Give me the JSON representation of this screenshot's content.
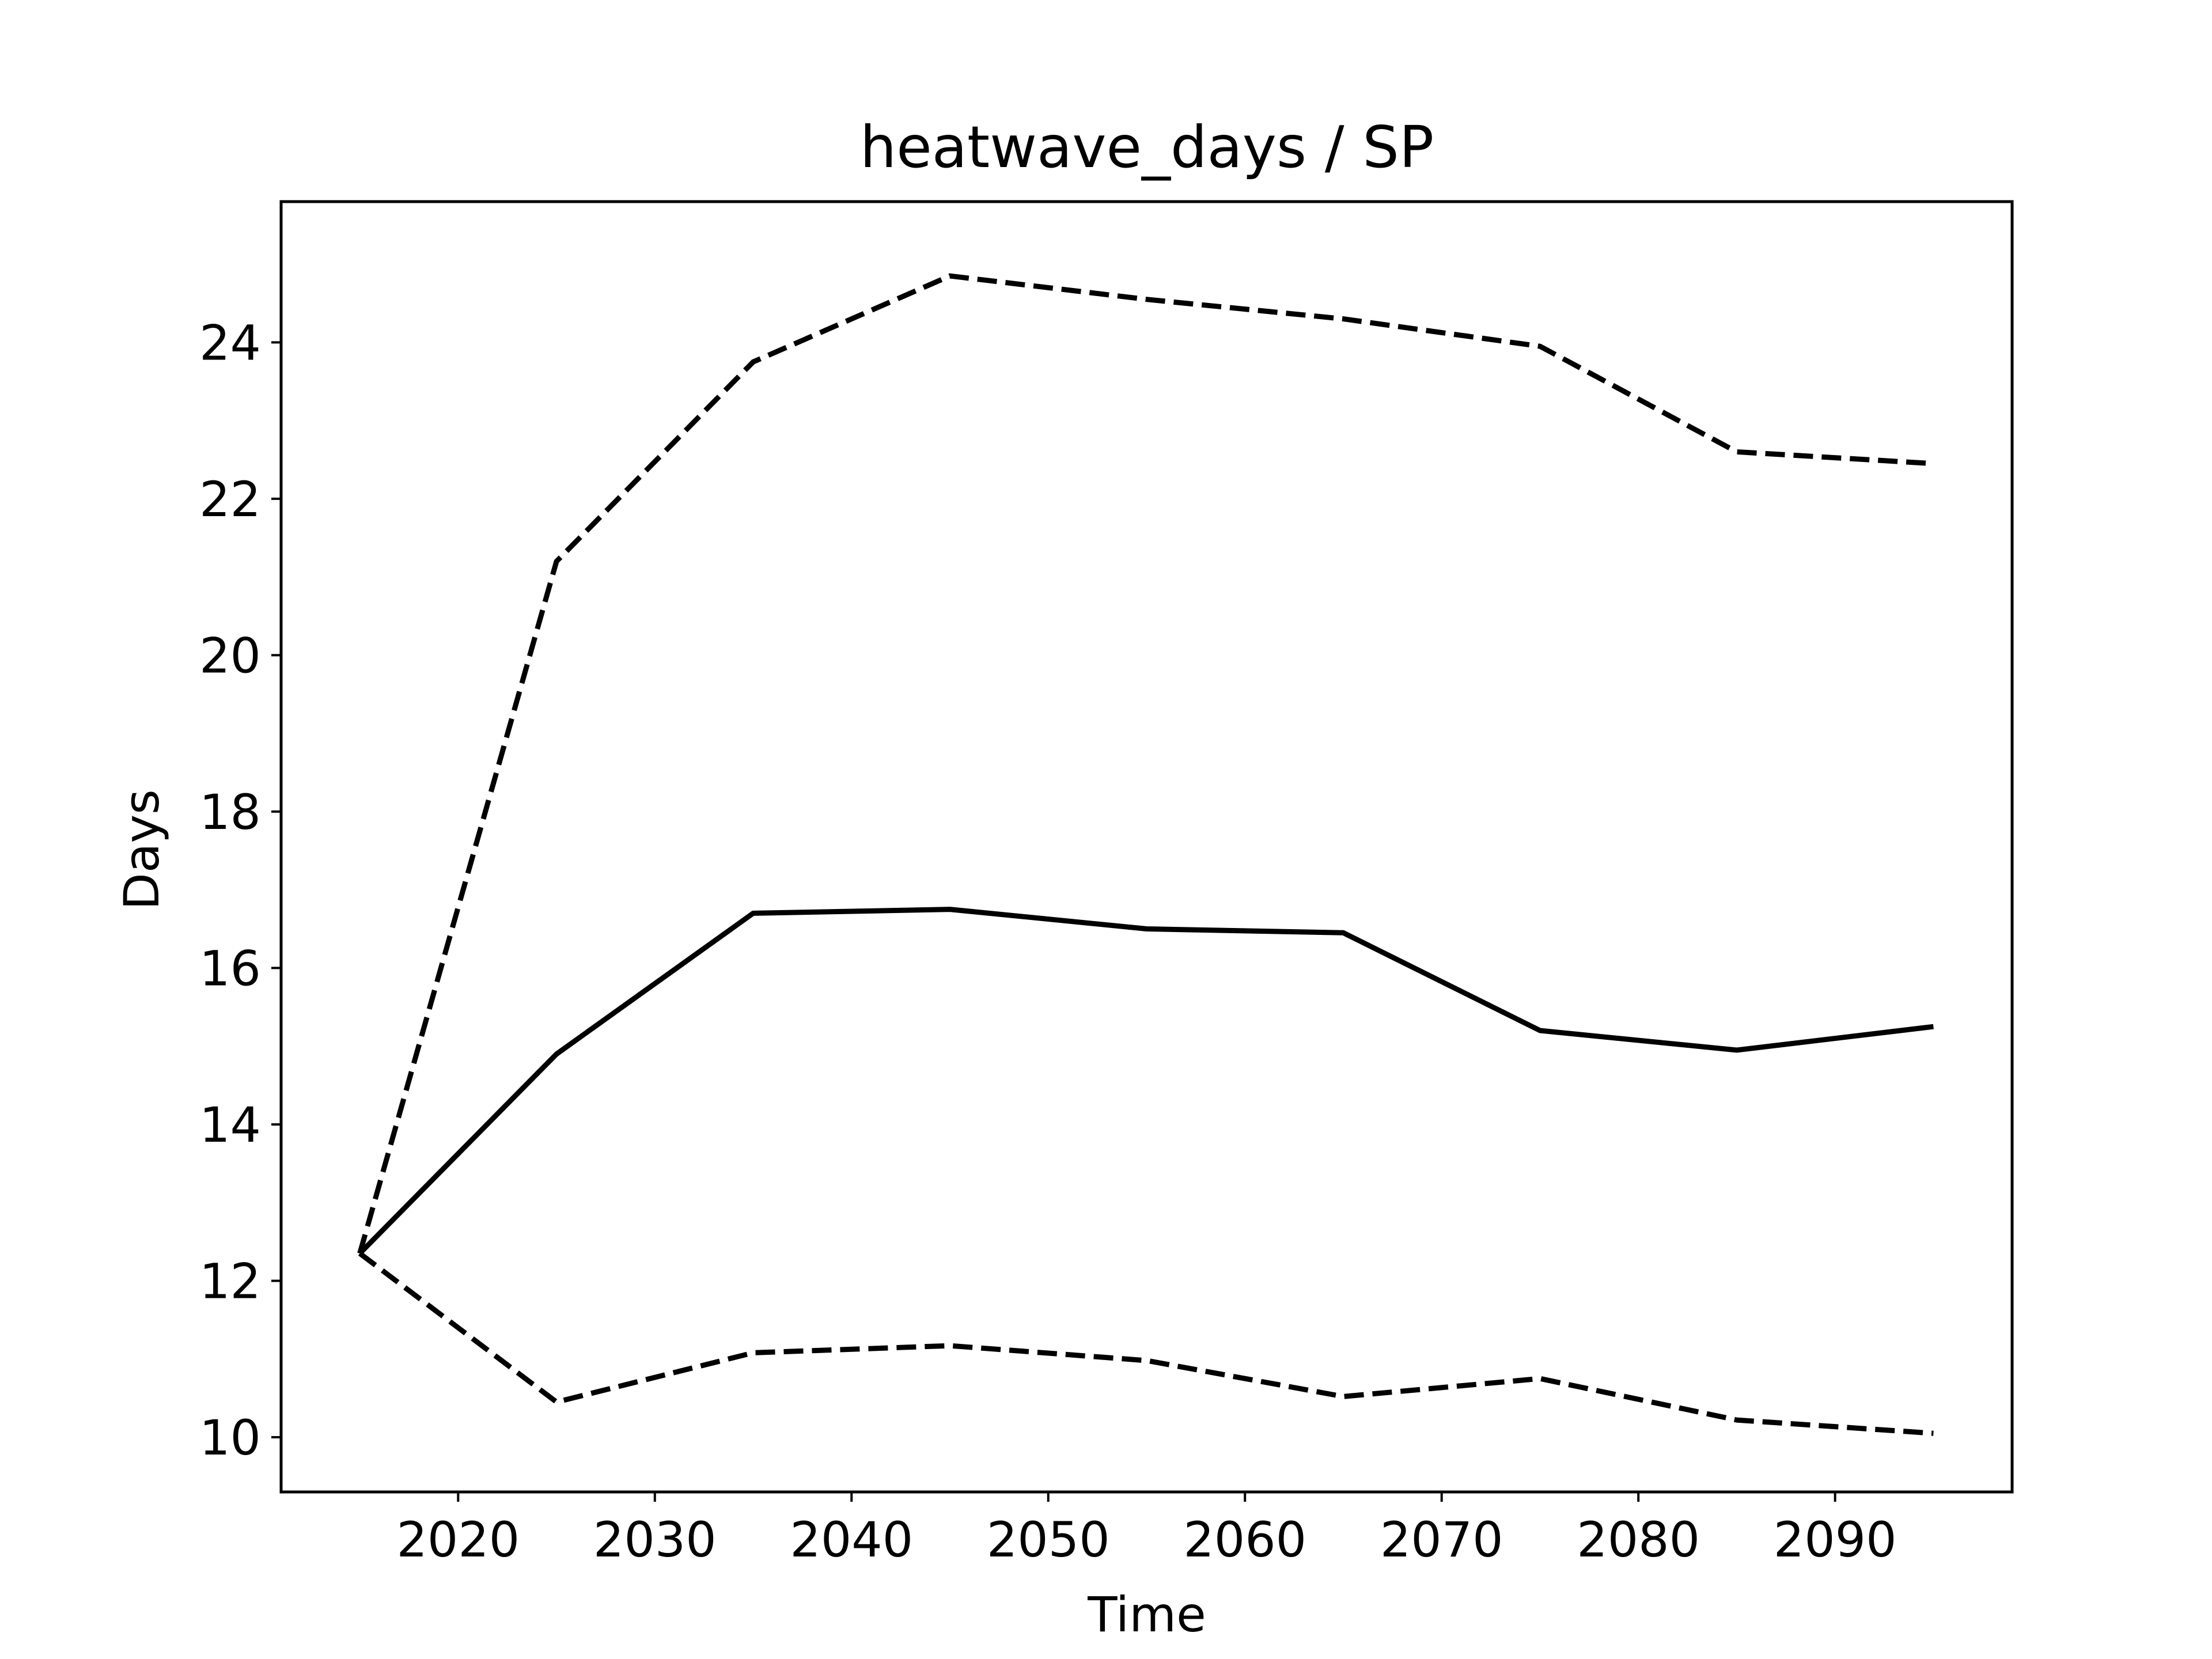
{
  "chart_data": {
    "type": "line",
    "title": "heatwave_days / SP",
    "xlabel": "Time",
    "ylabel": "Days",
    "xlim": [
      2011,
      2099
    ],
    "ylim": [
      9.3,
      25.8
    ],
    "xticks": [
      2020,
      2030,
      2040,
      2050,
      2060,
      2070,
      2080,
      2090
    ],
    "yticks": [
      10,
      12,
      14,
      16,
      18,
      20,
      22,
      24
    ],
    "grid": false,
    "x": [
      2015,
      2025,
      2035,
      2045,
      2055,
      2065,
      2075,
      2085,
      2095
    ],
    "series": [
      {
        "style": "solid",
        "color": "#000000",
        "values": [
          12.35,
          14.9,
          16.7,
          16.75,
          16.5,
          16.45,
          15.2,
          14.95,
          15.25
        ]
      },
      {
        "style": "dashed",
        "color": "#000000",
        "values": [
          12.35,
          21.2,
          23.75,
          24.85,
          24.55,
          24.3,
          23.95,
          22.6,
          22.45
        ]
      },
      {
        "style": "dashed",
        "color": "#000000",
        "values": [
          12.35,
          10.45,
          11.08,
          11.17,
          10.98,
          10.52,
          10.75,
          10.22,
          10.05
        ]
      }
    ]
  }
}
